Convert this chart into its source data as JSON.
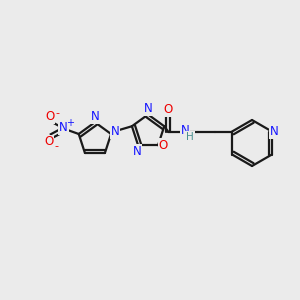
{
  "bg_color": "#ebebeb",
  "bond_color": "#1a1a1a",
  "N_color": "#1414ff",
  "O_color": "#ee0000",
  "H_color": "#4a9090",
  "line_width": 1.6,
  "figsize": [
    3.0,
    3.0
  ],
  "dpi": 100,
  "xlim": [
    0,
    300
  ],
  "ylim": [
    0,
    300
  ]
}
